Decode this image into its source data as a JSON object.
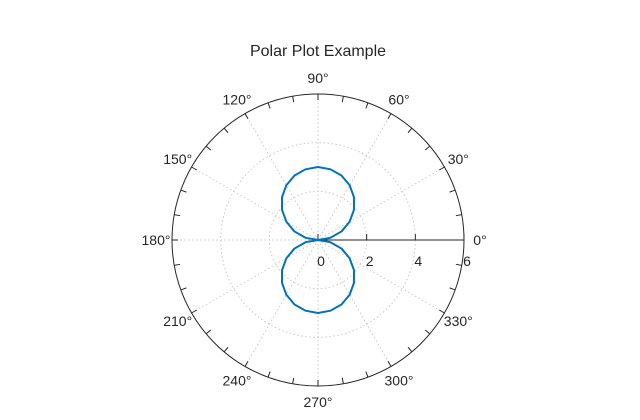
{
  "chart_data": {
    "type": "line",
    "subtype": "polar",
    "title": "Polar Plot Example",
    "theta_unit": "degrees",
    "theta_tick_labels": [
      "0°",
      "30°",
      "60°",
      "90°",
      "120°",
      "150°",
      "180°",
      "210°",
      "240°",
      "270°",
      "300°",
      "330°"
    ],
    "theta_ticks": [
      0,
      30,
      60,
      90,
      120,
      150,
      180,
      210,
      240,
      270,
      300,
      330
    ],
    "r_ticks": [
      0,
      2,
      4,
      6
    ],
    "r_tick_labels": [
      "0",
      "2",
      "4",
      "6"
    ],
    "rlim": [
      0,
      6
    ],
    "grid": true,
    "series": [
      {
        "color": "#0072bd",
        "theta_deg": [
          0,
          10,
          20,
          30,
          40,
          50,
          60,
          70,
          80,
          90,
          100,
          110,
          120,
          130,
          140,
          150,
          160,
          170,
          180,
          190,
          200,
          210,
          220,
          230,
          240,
          250,
          260,
          270,
          280,
          290,
          300,
          310,
          320,
          330,
          340,
          350,
          360
        ],
        "r": [
          0,
          0.52,
          1.03,
          1.5,
          1.93,
          2.3,
          2.6,
          2.82,
          2.95,
          3.0,
          2.95,
          2.82,
          2.6,
          2.3,
          1.93,
          1.5,
          1.03,
          0.52,
          0,
          0.52,
          1.03,
          1.5,
          1.93,
          2.3,
          2.6,
          2.82,
          2.95,
          3.0,
          2.95,
          2.82,
          2.6,
          2.3,
          1.93,
          1.5,
          1.03,
          0.52,
          0
        ]
      }
    ]
  }
}
